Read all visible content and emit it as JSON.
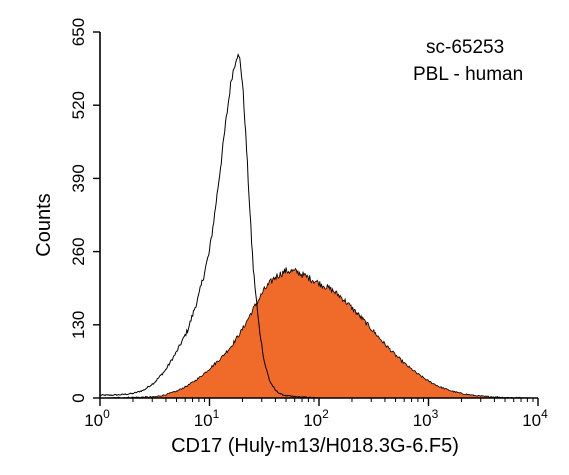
{
  "chart_data": {
    "type": "histogram",
    "xlabel": "CD17 (Huly-m13/H018.3G-6.F5)",
    "ylabel": "Counts",
    "xscale": "log",
    "xlim": [
      1,
      10000
    ],
    "ylim": [
      0,
      650
    ],
    "x_ticks": [
      {
        "base": "10",
        "exp": "0"
      },
      {
        "base": "10",
        "exp": "1"
      },
      {
        "base": "10",
        "exp": "2"
      },
      {
        "base": "10",
        "exp": "3"
      },
      {
        "base": "10",
        "exp": "4"
      }
    ],
    "y_ticks": [
      "0",
      "130",
      "260",
      "390",
      "520",
      "650"
    ],
    "annotations": [
      "sc-65253",
      "PBL - human"
    ],
    "colors": {
      "filled": "#f06a2a",
      "outline": "#000000"
    },
    "series": [
      {
        "style": "outline",
        "x": [
          1,
          1.26,
          1.58,
          2,
          2.51,
          3.16,
          3.98,
          5.01,
          6.31,
          7.94,
          10,
          11.2,
          12.6,
          14.1,
          15.8,
          17.8,
          19.0,
          20,
          21.1,
          22.4,
          23.7,
          25.1,
          28.2,
          31.6,
          35.5,
          39.8,
          44.7,
          50.1,
          63.1,
          79.4,
          100,
          200,
          1000,
          10000
        ],
        "y": [
          5,
          5,
          6,
          8,
          14,
          28,
          50,
          82,
          120,
          180,
          260,
          330,
          410,
          490,
          565,
          610,
          600,
          560,
          490,
          400,
          310,
          230,
          130,
          65,
          30,
          14,
          7,
          4,
          2,
          1,
          0,
          0,
          0,
          0
        ]
      },
      {
        "style": "filled",
        "x": [
          1,
          3.16,
          4,
          5,
          6.31,
          7.94,
          10,
          12.6,
          15.8,
          20,
          25.1,
          31.6,
          39.8,
          50.1,
          63.1,
          79.4,
          100,
          126,
          158,
          200,
          251,
          316,
          398,
          501,
          631,
          794,
          1000,
          1259,
          1585,
          1995,
          2512,
          3162,
          5012,
          10000
        ],
        "y": [
          0,
          2,
          6,
          12,
          22,
          35,
          52,
          70,
          92,
          122,
          158,
          192,
          215,
          226,
          224,
          214,
          204,
          194,
          180,
          160,
          140,
          118,
          96,
          76,
          58,
          43,
          30,
          20,
          13,
          8,
          5,
          3,
          1,
          0
        ]
      }
    ]
  }
}
